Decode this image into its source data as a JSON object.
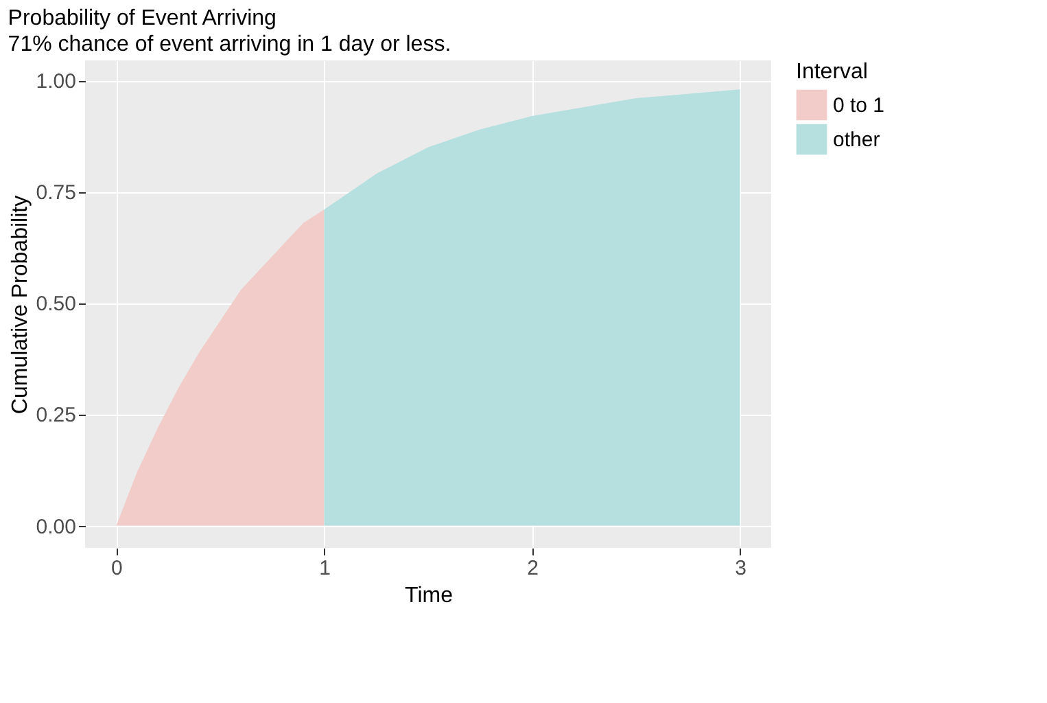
{
  "chart_data": {
    "type": "area",
    "title": "Probability of Event Arriving",
    "subtitle": "71% chance of event arriving in 1 day or less.",
    "xlabel": "Time",
    "ylabel": "Cumulative Probability",
    "legend_title": "Interval",
    "series": [
      {
        "name": "0 to 1",
        "color": "#f1ccc9",
        "x": [
          0,
          0.1,
          0.2,
          0.3,
          0.4,
          0.5,
          0.6,
          0.7,
          0.8,
          0.9,
          1.0
        ],
        "values": [
          0,
          0.12,
          0.22,
          0.31,
          0.39,
          0.46,
          0.53,
          0.58,
          0.63,
          0.68,
          0.71
        ]
      },
      {
        "name": "other",
        "color": "#b6dfe0",
        "x": [
          1,
          1.25,
          1.5,
          1.75,
          2,
          2.25,
          2.5,
          2.75,
          3
        ],
        "values": [
          0.71,
          0.79,
          0.85,
          0.89,
          0.92,
          0.94,
          0.96,
          0.97,
          0.98
        ]
      }
    ],
    "xlim": [
      -0.15,
      3.15
    ],
    "xticks": [
      0,
      1,
      2,
      3
    ],
    "ylim": [
      -0.05,
      1.045
    ],
    "yticks": [
      {
        "value": 0,
        "label": "0.00"
      },
      0.25,
      {
        "value": 0.5,
        "label": "0.50"
      },
      0.75,
      {
        "value": 1,
        "label": "1.00"
      }
    ],
    "grid": true,
    "legend": "right"
  }
}
